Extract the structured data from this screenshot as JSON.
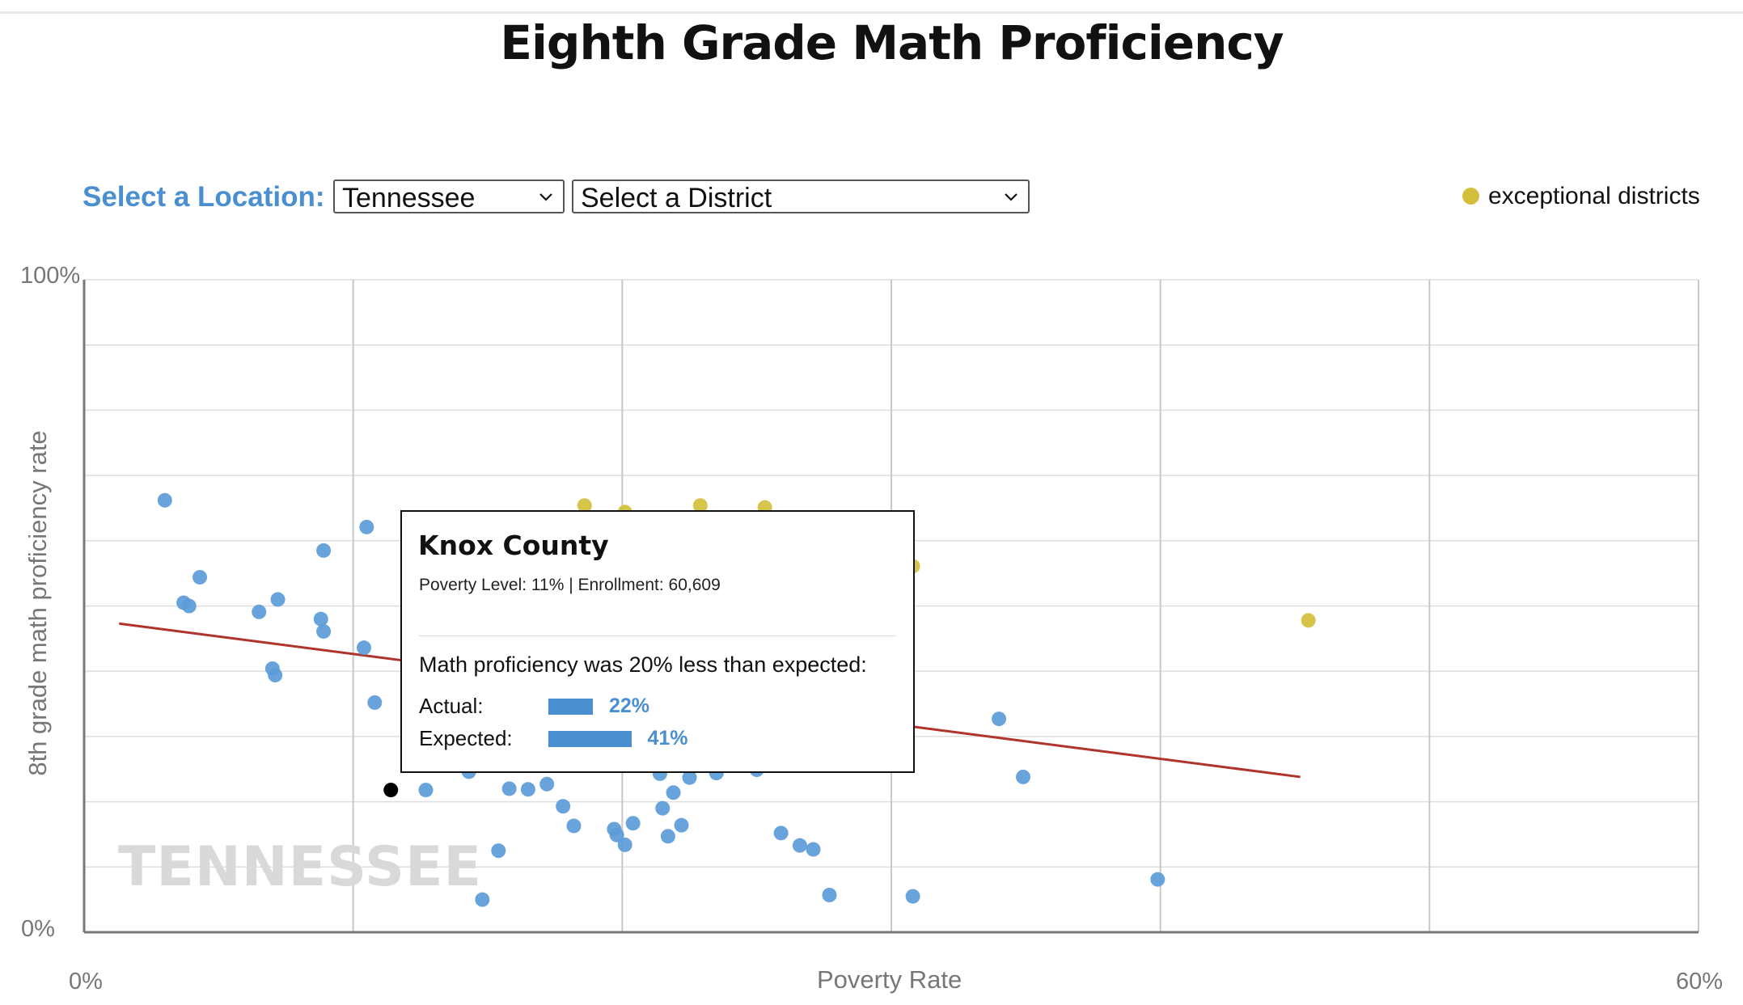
{
  "title": "Eighth Grade Math Proficiency",
  "controls": {
    "location_label": "Select a Location:",
    "location_value": "Tennessee",
    "district_value": "Select a District"
  },
  "legend": {
    "label": "exceptional districts"
  },
  "colors": {
    "regular": "#5b9bd9",
    "exceptional": "#d4bf3c",
    "selected": "#000000",
    "trend": "#b0342b",
    "accent": "#4a8fd0"
  },
  "watermark": "TENNESSEE",
  "tooltip": {
    "name": "Knox County",
    "meta": "Poverty Level: 11% | Enrollment: 60,609",
    "message": "Math proficiency was 20% less than expected:",
    "actual_label": "Actual:",
    "actual_value": "22%",
    "actual_pct": 22,
    "expected_label": "Expected:",
    "expected_value": "41%",
    "expected_pct": 41
  },
  "chart_data": {
    "type": "scatter",
    "title": "Eighth Grade Math Proficiency",
    "xlabel": "Poverty Rate",
    "ylabel": "8th grade math proficiency rate",
    "xlim": [
      0,
      60
    ],
    "ylim": [
      0,
      100
    ],
    "x_tick_labels": [
      "0%",
      "60%"
    ],
    "y_tick_labels": [
      "0%",
      "100%"
    ],
    "x_gridlines": [
      0,
      10,
      20,
      30,
      40,
      50,
      60
    ],
    "y_gridlines": [
      0,
      10,
      20,
      30,
      40,
      50,
      60,
      70,
      80,
      90,
      100
    ],
    "trend_line": [
      [
        1.3,
        47.3
      ],
      [
        45.2,
        23.8
      ]
    ],
    "series": [
      {
        "kind": "regular",
        "points": [
          [
            3.0,
            66.2
          ],
          [
            4.3,
            54.4
          ],
          [
            3.7,
            50.5
          ],
          [
            3.9,
            50.0
          ],
          [
            6.5,
            49.1
          ],
          [
            7.2,
            51.0
          ],
          [
            8.9,
            58.5
          ],
          [
            8.8,
            48.0
          ],
          [
            8.9,
            46.1
          ],
          [
            10.5,
            62.1
          ],
          [
            10.4,
            43.6
          ],
          [
            7.0,
            40.4
          ],
          [
            7.1,
            39.4
          ],
          [
            10.8,
            35.2
          ],
          [
            12.7,
            21.8
          ],
          [
            14.3,
            24.6
          ],
          [
            15.8,
            22.0
          ],
          [
            17.2,
            22.7
          ],
          [
            17.8,
            19.3
          ],
          [
            18.2,
            16.3
          ],
          [
            16.5,
            21.9
          ],
          [
            20.4,
            16.7
          ],
          [
            21.4,
            24.3
          ],
          [
            21.9,
            21.4
          ],
          [
            20.1,
            13.4
          ],
          [
            15.4,
            12.5
          ],
          [
            19.7,
            15.8
          ],
          [
            19.8,
            14.9
          ],
          [
            21.5,
            19.0
          ],
          [
            22.5,
            23.7
          ],
          [
            22.2,
            16.4
          ],
          [
            21.7,
            14.7
          ],
          [
            23.5,
            24.4
          ],
          [
            25.0,
            24.9
          ],
          [
            14.8,
            5.0
          ],
          [
            25.9,
            15.2
          ],
          [
            26.6,
            13.3
          ],
          [
            27.1,
            12.7
          ],
          [
            27.7,
            5.7
          ],
          [
            30.8,
            5.5
          ],
          [
            34.0,
            32.7
          ],
          [
            34.9,
            23.8
          ],
          [
            39.9,
            8.1
          ]
        ]
      },
      {
        "kind": "exceptional",
        "points": [
          [
            18.6,
            65.4
          ],
          [
            20.1,
            64.4
          ],
          [
            22.9,
            65.4
          ],
          [
            25.3,
            65.1
          ],
          [
            30.8,
            56.1
          ],
          [
            45.5,
            47.8
          ]
        ]
      },
      {
        "kind": "selected",
        "points": [
          [
            11.4,
            21.8
          ]
        ]
      }
    ]
  }
}
